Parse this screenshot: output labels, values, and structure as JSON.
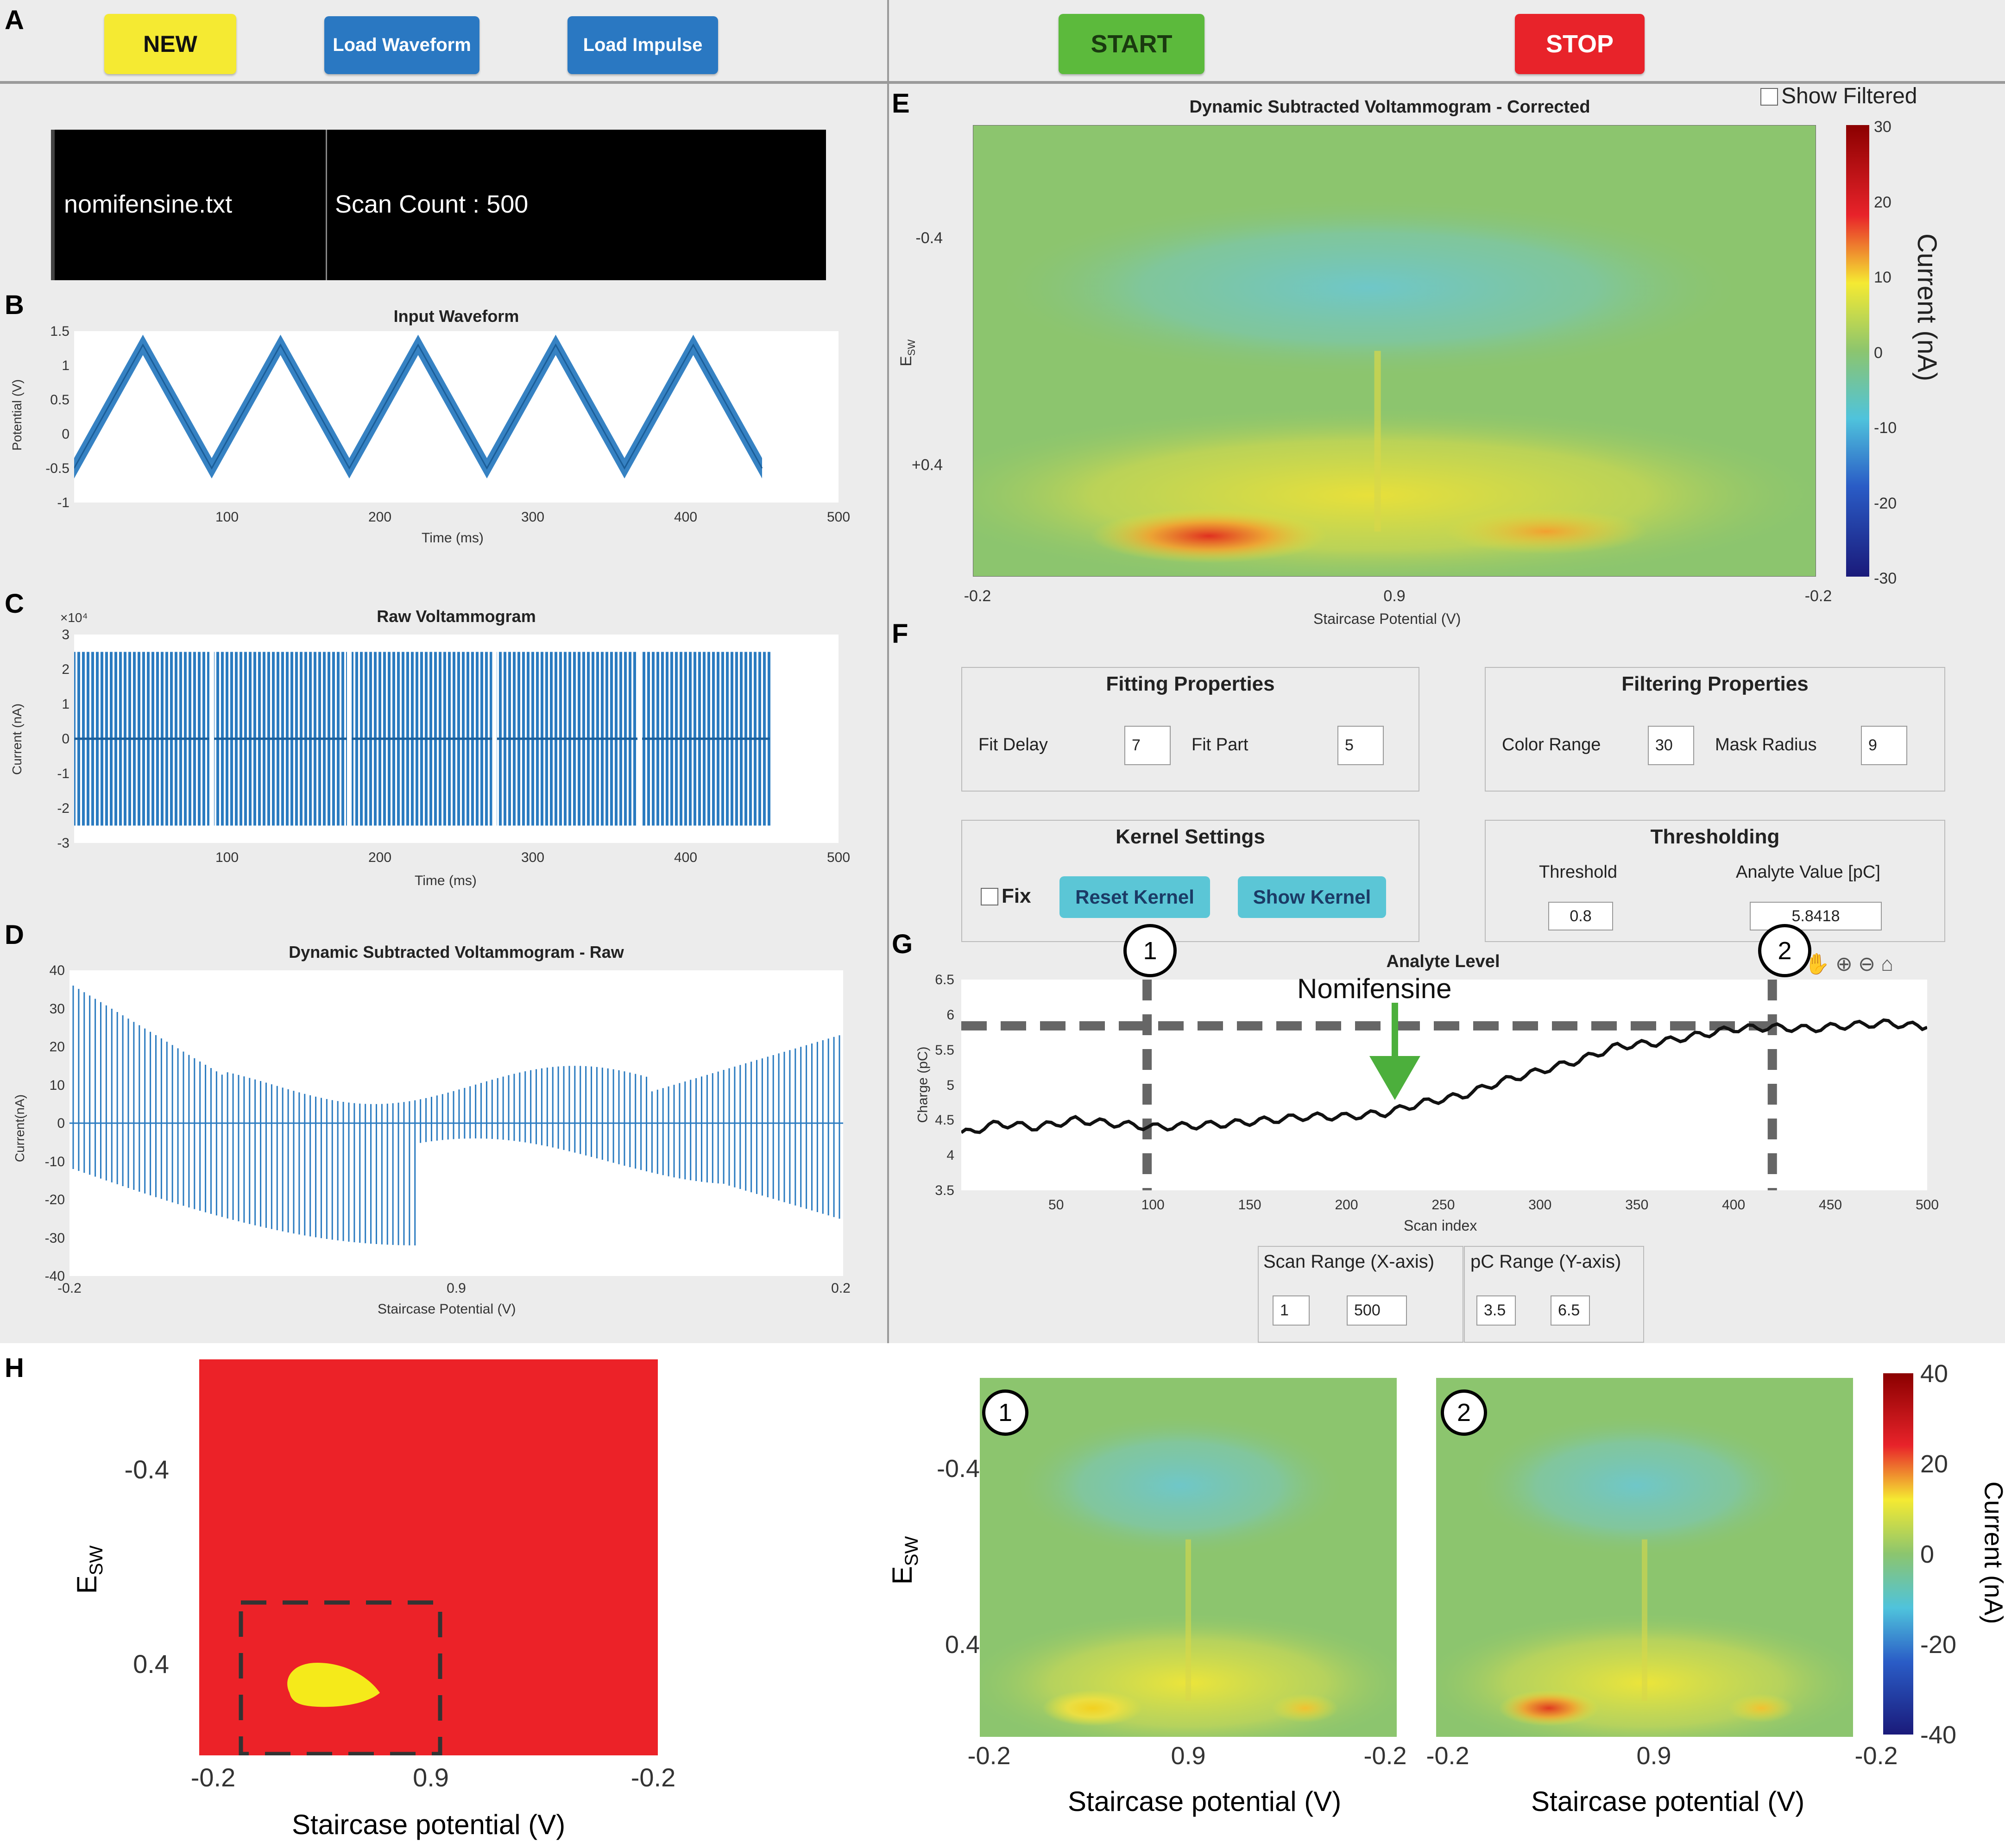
{
  "panel_letters": {
    "A": "A",
    "B": "B",
    "C": "C",
    "D": "D",
    "E": "E",
    "F": "F",
    "G": "G",
    "H": "H"
  },
  "toolbar": {
    "new_label": "NEW",
    "load_waveform_label": "Load Waveform",
    "load_impulse_label": "Load Impulse",
    "start_label": "START",
    "stop_label": "STOP"
  },
  "file_info": {
    "filename": "nomifensine.txt",
    "scan_count": "Scan Count : 500"
  },
  "input_waveform": {
    "title": "Input Waveform",
    "ylabel": "Potential (V)",
    "xlabel": "Time (ms)",
    "yticks": [
      "1.5",
      "1",
      "0.5",
      "0",
      "-0.5",
      "-1"
    ],
    "xticks": [
      "100",
      "200",
      "300",
      "400",
      "500"
    ]
  },
  "raw_voltammogram": {
    "title": "Raw Voltammogram",
    "ylabel": "Current (nA)",
    "xlabel": "Time (ms)",
    "exponent": "×10⁴",
    "yticks": [
      "3",
      "2",
      "1",
      "0",
      "-1",
      "-2",
      "-3"
    ],
    "xticks": [
      "100",
      "200",
      "300",
      "400",
      "500"
    ]
  },
  "dsv_raw": {
    "title": "Dynamic Subtracted Voltammogram - Raw",
    "ylabel": "Current(nA)",
    "xlabel": "Staircase Potential (V)",
    "yticks": [
      "40",
      "30",
      "20",
      "10",
      "0",
      "-10",
      "-20",
      "-30",
      "-40"
    ],
    "xticks": [
      "-0.2",
      "0.9",
      "0.2"
    ]
  },
  "dsv_corrected": {
    "title": "Dynamic Subtracted Voltammogram - Corrected",
    "show_filtered_label": "Show Filtered",
    "ylabel": "E",
    "ylabel_sub": "SW",
    "xlabel": "Staircase Potential (V)",
    "yticks": [
      "-0.4",
      "+0.4"
    ],
    "xticks": [
      "-0.2",
      "0.9",
      "-0.2"
    ],
    "colorbar_label": "Current (nA)",
    "colorbar_ticks": [
      "30",
      "20",
      "10",
      "0",
      "-10",
      "-20",
      "-30"
    ]
  },
  "fitting": {
    "title": "Fitting Properties",
    "fit_delay_label": "Fit Delay",
    "fit_delay": "7",
    "fit_part_label": "Fit Part",
    "fit_part": "5"
  },
  "filtering": {
    "title": "Filtering Properties",
    "color_range_label": "Color Range",
    "color_range": "30",
    "mask_radius_label": "Mask Radius",
    "mask_radius": "9"
  },
  "kernel": {
    "title": "Kernel Settings",
    "fix_label": "Fix",
    "reset_label": "Reset Kernel",
    "show_label": "Show Kernel"
  },
  "thresholding": {
    "title": "Thresholding",
    "threshold_label": "Threshold",
    "threshold": "0.8",
    "analyte_label": "Analyte Value [pC]",
    "analyte": "5.8418"
  },
  "analyte_level": {
    "title": "Analyte Level",
    "ylabel": "Charge (pC)",
    "xlabel": "Scan index",
    "annotation": "Nomifensine",
    "marker1": "1",
    "marker2": "2",
    "yticks": [
      "6.5",
      "6",
      "5.5",
      "5",
      "4.5",
      "4",
      "3.5"
    ],
    "xticks": [
      "50",
      "100",
      "150",
      "200",
      "250",
      "300",
      "350",
      "400",
      "450",
      "500"
    ]
  },
  "scan_range": {
    "title": "Scan Range (X-axis)",
    "min": "1",
    "max": "500"
  },
  "pc_range": {
    "title": "pC Range (Y-axis)",
    "min": "3.5",
    "max": "6.5"
  },
  "panel_h": {
    "ylabel": "E",
    "ylabel_sub": "SW",
    "yticks": [
      "-0.4",
      "0.4"
    ],
    "xticks": [
      "-0.2",
      "0.9",
      "-0.2"
    ],
    "xlabel": "Staircase potential (V)",
    "marker1": "1",
    "marker2": "2",
    "colorbar_label": "Current (nA)",
    "colorbar_ticks": [
      "40",
      "20",
      "0",
      "-20",
      "-40"
    ]
  },
  "colors": {
    "yellow_btn": "#f5ea32",
    "blue_btn": "#2a78c2",
    "green_btn": "#5cba3c",
    "red_btn": "#e8232a",
    "trace": "#2b7bc0",
    "cyan_btn": "#5bc6d6"
  },
  "chart_data": [
    {
      "type": "line",
      "title": "Input Waveform",
      "xlabel": "Time (ms)",
      "ylabel": "Potential (V)",
      "xlim": [
        0,
        500
      ],
      "ylim": [
        -1,
        1.5
      ],
      "x": [
        0,
        45,
        90,
        135,
        180,
        225,
        270,
        315,
        360,
        405,
        450
      ],
      "values": [
        -0.5,
        1.3,
        -0.5,
        1.3,
        -0.5,
        1.3,
        -0.5,
        1.3,
        -0.5,
        1.3,
        -0.5
      ]
    },
    {
      "type": "line",
      "title": "Raw Voltammogram",
      "xlabel": "Time (ms)",
      "ylabel": "Current (nA)",
      "xlim": [
        0,
        500
      ],
      "ylim": [
        -3,
        3
      ],
      "unit_multiplier": "x10^4",
      "envelope": [
        -2.5,
        2.5
      ]
    },
    {
      "type": "line",
      "title": "Dynamic Subtracted Voltammogram - Raw",
      "xlabel": "Staircase Potential (V)",
      "ylabel": "Current(nA)",
      "ylim": [
        -40,
        40
      ],
      "categories": [
        "-0.2",
        "0.9",
        "0.2"
      ]
    },
    {
      "type": "heatmap",
      "title": "Dynamic Subtracted Voltammogram - Corrected",
      "xlabel": "Staircase Potential (V)",
      "ylabel": "ESW",
      "colorbar_range": [
        -30,
        30
      ]
    },
    {
      "type": "line",
      "title": "Analyte Level",
      "xlabel": "Scan index",
      "ylabel": "Charge (pC)",
      "xlim": [
        1,
        500
      ],
      "ylim": [
        3.5,
        6.5
      ],
      "x": [
        1,
        20,
        40,
        60,
        80,
        100,
        120,
        140,
        160,
        180,
        200,
        220,
        240,
        260,
        280,
        300,
        320,
        340,
        360,
        380,
        400,
        420,
        440,
        460,
        480,
        500
      ],
      "values": [
        4.3,
        4.45,
        4.4,
        4.5,
        4.45,
        4.4,
        4.42,
        4.45,
        4.5,
        4.55,
        4.55,
        4.6,
        4.75,
        4.85,
        5.05,
        5.2,
        5.35,
        5.55,
        5.6,
        5.7,
        5.8,
        5.82,
        5.8,
        5.85,
        5.88,
        5.82
      ],
      "threshold": 5.8418,
      "markers": [
        {
          "label": "1",
          "x": 97
        },
        {
          "label": "2",
          "x": 420
        }
      ],
      "annotation": {
        "text": "Nomifensine",
        "x": 225
      }
    },
    {
      "type": "heatmap",
      "title": "",
      "xlabel": "Staircase potential (V)",
      "ylabel": "ESW",
      "colorbar_range": [
        -40,
        40
      ]
    }
  ]
}
